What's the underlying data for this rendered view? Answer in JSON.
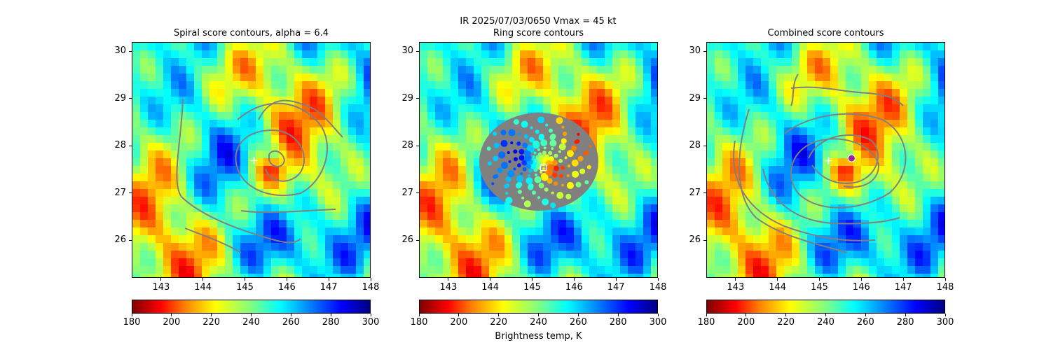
{
  "figure": {
    "title_line1": "IR  2025/07/03/0650    Vmax = 45 kt",
    "xlabel_center": "Brightness temp, K"
  },
  "colorbar": {
    "ticks": [
      "180",
      "200",
      "220",
      "240",
      "260",
      "280",
      "300"
    ],
    "range": [
      180,
      300
    ],
    "colormap": "jet_r"
  },
  "chart_data": [
    {
      "type": "heatmap",
      "title": "Spiral score contours, alpha =  6.4",
      "xticks": [
        "143",
        "144",
        "145",
        "146",
        "147",
        "148"
      ],
      "yticks": [
        "26",
        "27",
        "28",
        "29",
        "30"
      ],
      "xlim": [
        142.3,
        148.0
      ],
      "ylim": [
        25.2,
        30.2
      ],
      "marker": {
        "symbol": "+",
        "x": 145.2,
        "y": 27.7,
        "color": "#ffffff"
      },
      "contour_color": "#808080"
    },
    {
      "type": "heatmap",
      "title": "Ring score contours",
      "xticks": [
        "143",
        "144",
        "145",
        "146",
        "147",
        "148"
      ],
      "yticks": [
        "26",
        "27",
        "28",
        "29",
        "30"
      ],
      "xlim": [
        142.3,
        148.0
      ],
      "ylim": [
        25.2,
        30.2
      ],
      "marker": {
        "symbol": "square",
        "x": 145.25,
        "y": 27.55,
        "color": "#ffffff"
      },
      "contour_color": "#808080"
    },
    {
      "type": "heatmap",
      "title": "Combined score contours",
      "xticks": [
        "143",
        "144",
        "145",
        "146",
        "147",
        "148"
      ],
      "yticks": [
        "26",
        "27",
        "28",
        "29",
        "30"
      ],
      "xlim": [
        142.3,
        148.0
      ],
      "ylim": [
        25.2,
        30.2
      ],
      "marker": {
        "symbol": "circle",
        "x": 145.75,
        "y": 27.75,
        "color": "#a020a0"
      },
      "marker2": {
        "symbol": "+",
        "x": 145.2,
        "y": 27.7,
        "color": "#ffffff"
      },
      "contour_color": "#808080"
    }
  ]
}
